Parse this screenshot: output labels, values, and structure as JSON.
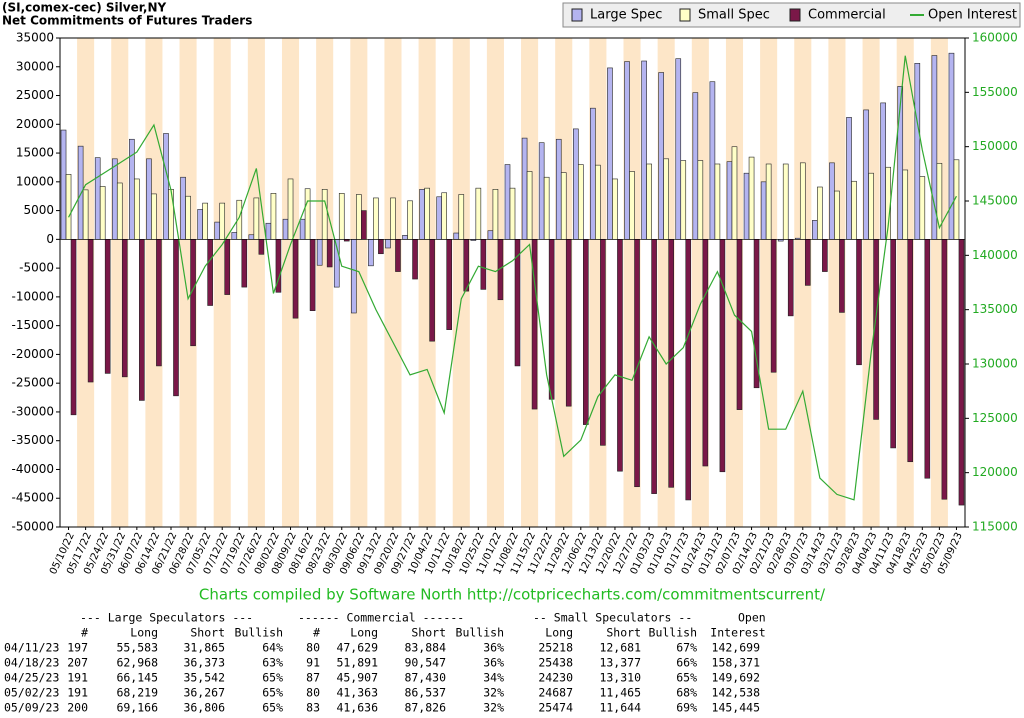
{
  "chart_data": {
    "type": "bar",
    "title": "(SI,comex-cec) Silver,NY",
    "subtitle": "Net Commitments of Futures Traders",
    "categories": [
      "05/10/22",
      "05/17/22",
      "05/24/22",
      "05/31/22",
      "06/07/22",
      "06/14/22",
      "06/21/22",
      "06/28/22",
      "07/05/22",
      "07/12/22",
      "07/19/22",
      "07/26/22",
      "08/02/22",
      "08/09/22",
      "08/16/22",
      "08/23/22",
      "08/30/22",
      "09/06/22",
      "09/13/22",
      "09/20/22",
      "09/27/22",
      "10/04/22",
      "10/11/22",
      "10/18/22",
      "10/25/22",
      "11/01/22",
      "11/08/22",
      "11/15/22",
      "11/22/22",
      "11/29/22",
      "12/06/22",
      "12/13/22",
      "12/20/22",
      "12/27/22",
      "01/03/23",
      "01/10/23",
      "01/17/23",
      "01/24/23",
      "01/31/23",
      "02/07/23",
      "02/14/23",
      "02/21/23",
      "02/28/23",
      "03/07/23",
      "03/14/23",
      "03/21/23",
      "03/28/23",
      "04/04/23",
      "04/11/23",
      "04/18/23",
      "04/25/23",
      "05/02/23",
      "05/09/23"
    ],
    "series": [
      {
        "name": "Large Spec",
        "color": "#b4b4f0",
        "values": [
          19000,
          16200,
          14200,
          14000,
          17400,
          14000,
          18400,
          10800,
          5200,
          3000,
          1200,
          800,
          2800,
          3500,
          3500,
          -4500,
          -8300,
          -12800,
          -4600,
          -1500,
          700,
          8700,
          7400,
          1100,
          -200,
          1500,
          13000,
          17600,
          16800,
          17400,
          19200,
          22800,
          29800,
          30900,
          31000,
          29000,
          31400,
          25500,
          27400,
          13500,
          11500,
          10000,
          -300,
          200,
          3300,
          13300,
          21200,
          22500,
          23718,
          26595,
          30603,
          31952,
          32360
        ]
      },
      {
        "name": "Small Spec",
        "color": "#ffffc8",
        "values": [
          11300,
          8600,
          9200,
          9800,
          10500,
          7900,
          8700,
          7500,
          6300,
          6300,
          6800,
          7200,
          8000,
          10500,
          8800,
          8700,
          8000,
          7800,
          7200,
          7200,
          6700,
          8900,
          8100,
          7800,
          8900,
          8700,
          8900,
          11800,
          10800,
          11600,
          13000,
          12900,
          10500,
          11800,
          13100,
          14000,
          13700,
          13700,
          13100,
          16100,
          14300,
          13100,
          13100,
          13300,
          9100,
          8400,
          10100,
          11500,
          12537,
          12061,
          10920,
          13222,
          13830
        ]
      },
      {
        "name": "Commercial",
        "color": "#7a1848",
        "values": [
          -30500,
          -24800,
          -23300,
          -23900,
          -28000,
          -22000,
          -27200,
          -18500,
          -11500,
          -9600,
          -8300,
          -2600,
          -9200,
          -13700,
          -12400,
          -4800,
          -300,
          5000,
          -2500,
          -5600,
          -6900,
          -17700,
          -15700,
          -9000,
          -8700,
          -10500,
          -22000,
          -29500,
          -27800,
          -29000,
          -32200,
          -35800,
          -40300,
          -43000,
          -44200,
          -43100,
          -45300,
          -39400,
          -40400,
          -29600,
          -25800,
          -23100,
          -13300,
          -8000,
          -5600,
          -12700,
          -21800,
          -31300,
          -36255,
          -38656,
          -41523,
          -45174,
          -46190
        ]
      },
      {
        "name": "Open Interest",
        "color": "#33aa33",
        "axis": "y2",
        "values": [
          143500,
          146500,
          147500,
          148500,
          149500,
          152000,
          146000,
          136000,
          139000,
          141000,
          143500,
          148000,
          136500,
          141000,
          145000,
          145000,
          139000,
          138500,
          135000,
          132000,
          129000,
          129500,
          125500,
          136000,
          139000,
          138500,
          139500,
          141000,
          129000,
          121500,
          123000,
          127000,
          129000,
          128500,
          132500,
          130000,
          131500,
          135500,
          138500,
          134500,
          133000,
          124000,
          124000,
          127500,
          119500,
          118000,
          117500,
          131000,
          142699,
          158371,
          149692,
          142538,
          145445
        ]
      }
    ],
    "ylim": [
      -50000,
      35000
    ],
    "yticks": [
      -50000,
      -45000,
      -40000,
      -35000,
      -30000,
      -25000,
      -20000,
      -15000,
      -10000,
      -5000,
      0,
      5000,
      10000,
      15000,
      20000,
      25000,
      30000,
      35000
    ],
    "y2lim": [
      115000,
      160000
    ],
    "y2ticks": [
      115000,
      120000,
      125000,
      130000,
      135000,
      140000,
      145000,
      150000,
      155000,
      160000
    ],
    "legend": "top-right",
    "footer": "Charts compiled by Software North  http://cotpricecharts.com/commitmentscurrent/"
  },
  "table": {
    "header1": [
      "--- Large Speculators ---",
      "------ Commercial ------",
      "-- Small Speculators --",
      "Open"
    ],
    "header2": [
      "#",
      "Long",
      "Short",
      "Bullish",
      "#",
      "Long",
      "Short",
      "Bullish",
      "Long",
      "Short",
      "Bullish",
      "Interest"
    ],
    "rows": [
      [
        "04/11/23",
        "197",
        "55,583",
        "31,865",
        "64%",
        "80",
        "47,629",
        "83,884",
        "36%",
        "25218",
        "12,681",
        "67%",
        "142,699"
      ],
      [
        "04/18/23",
        "207",
        "62,968",
        "36,373",
        "63%",
        "91",
        "51,891",
        "90,547",
        "36%",
        "25438",
        "13,377",
        "66%",
        "158,371"
      ],
      [
        "04/25/23",
        "191",
        "66,145",
        "35,542",
        "65%",
        "87",
        "45,907",
        "87,430",
        "34%",
        "24230",
        "13,310",
        "65%",
        "149,692"
      ],
      [
        "05/02/23",
        "191",
        "68,219",
        "36,267",
        "65%",
        "80",
        "41,363",
        "86,537",
        "32%",
        "24687",
        "11,465",
        "68%",
        "142,538"
      ],
      [
        "05/09/23",
        "200",
        "69,166",
        "36,806",
        "65%",
        "83",
        "41,636",
        "87,826",
        "32%",
        "25474",
        "11,644",
        "69%",
        "145,445"
      ]
    ]
  }
}
